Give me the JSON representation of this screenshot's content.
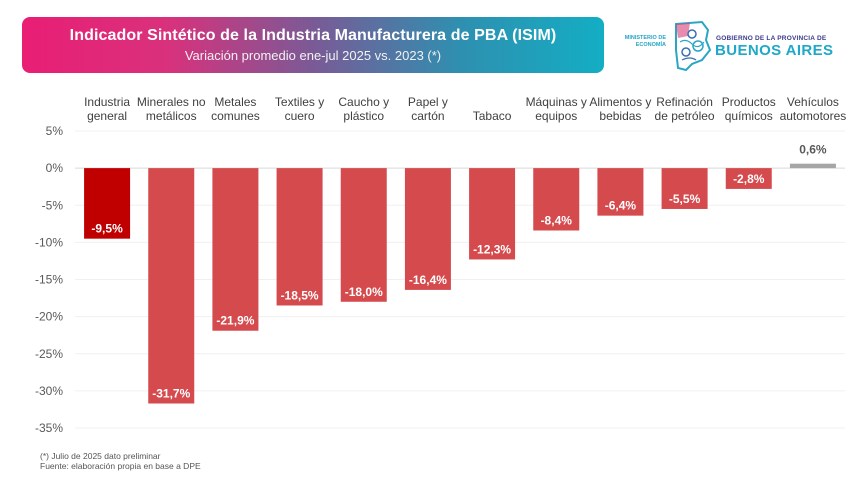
{
  "header": {
    "title": "Indicador Sintético de la Industria Manufacturera de PBA (ISIM)",
    "subtitle": "Variación promedio ene-jul 2025 vs. 2023 (*)"
  },
  "logo": {
    "ministry_line1": "MINISTERIO DE",
    "ministry_line2": "ECONOMÍA",
    "gov_line": "GOBIERNO DE LA PROVINCIA DE",
    "province": "BUENOS AIRES",
    "icon": "buenos-aires-province-map-icon"
  },
  "footnotes": {
    "note": "(*) Julio de 2025 dato preliminar",
    "source": "Fuente: elaboración propia en base a DPE"
  },
  "chart_data": {
    "type": "bar",
    "title": "Indicador Sintético de la Industria Manufacturera de PBA (ISIM)",
    "subtitle": "Variación promedio ene-jul 2025 vs. 2023 (*)",
    "xlabel": "",
    "ylabel": "",
    "categories": [
      [
        "Industria",
        "general"
      ],
      [
        "Minerales no",
        "metálicos"
      ],
      [
        "Metales",
        "comunes"
      ],
      [
        "Textiles y",
        "cuero"
      ],
      [
        "Caucho y",
        "plástico"
      ],
      [
        "Papel y",
        "cartón"
      ],
      [
        "",
        "Tabaco"
      ],
      [
        "Máquinas y",
        "equipos"
      ],
      [
        "Alimentos y",
        "bebidas"
      ],
      [
        "Refinación",
        "de petróleo"
      ],
      [
        "Productos",
        "químicos"
      ],
      [
        "Vehículos",
        "automotores"
      ]
    ],
    "values": [
      -9.5,
      -31.7,
      -21.9,
      -18.5,
      -18.0,
      -16.4,
      -12.3,
      -8.4,
      -6.4,
      -5.5,
      -2.8,
      0.6
    ],
    "data_labels": [
      "-9,5%",
      "-31,7%",
      "-21,9%",
      "-18,5%",
      "-18,0%",
      "-16,4%",
      "-12,3%",
      "-8,4%",
      "-6,4%",
      "-5,5%",
      "-2,8%",
      "0,6%"
    ],
    "y_ticks": [
      5,
      0,
      -5,
      -10,
      -15,
      -20,
      -25,
      -30,
      -35
    ],
    "y_tick_labels": [
      "5%",
      "0%",
      "-5%",
      "-10%",
      "-15%",
      "-20%",
      "-25%",
      "-30%",
      "-35%"
    ],
    "ylim": [
      -35,
      5
    ],
    "grid": true,
    "legend": "none",
    "colors": {
      "highlight": "#c00000",
      "negative": "#d44a4d",
      "positive": "#a6a6a6",
      "positive_label": "#595959"
    }
  }
}
